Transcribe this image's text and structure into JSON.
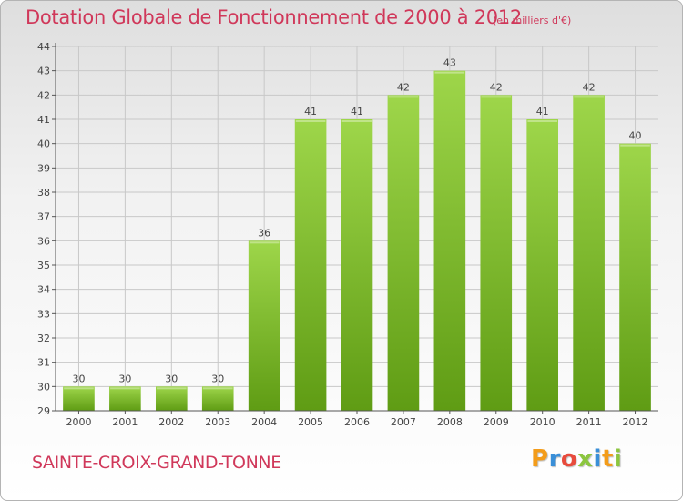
{
  "header": {
    "title": "Dotation Globale de Fonctionnement de 2000 à 2012",
    "subtitle": "(en milliers d'€)"
  },
  "footer": {
    "commune": "SAINTE-CROIX-GRAND-TONNE",
    "logo_text": "Proxiti",
    "logo_letters": [
      "P",
      "r",
      "o",
      "x",
      "i",
      "t",
      "i"
    ],
    "logo_colors": [
      "#f39c1a",
      "#3a8fd8",
      "#e84c3d",
      "#8cc63f",
      "#3a8fd8",
      "#f39c1a",
      "#8cc63f"
    ]
  },
  "colors": {
    "accent": "#d0385a",
    "bar_top": "#9ed64a",
    "bar_bottom": "#5f9c14",
    "grid": "#c8c8c8",
    "axis": "#555555"
  },
  "chart_data": {
    "type": "bar",
    "title": "Dotation Globale de Fonctionnement de 2000 à 2012",
    "subtitle": "(en milliers d'€)",
    "xlabel": "",
    "ylabel": "",
    "categories": [
      "2000",
      "2001",
      "2002",
      "2003",
      "2004",
      "2005",
      "2006",
      "2007",
      "2008",
      "2009",
      "2010",
      "2011",
      "2012"
    ],
    "values": [
      30,
      30,
      30,
      30,
      36,
      41,
      41,
      42,
      43,
      42,
      41,
      42,
      40
    ],
    "ylim": [
      29,
      44
    ],
    "yticks": [
      29,
      30,
      31,
      32,
      33,
      34,
      35,
      36,
      37,
      38,
      39,
      40,
      41,
      42,
      43,
      44
    ],
    "grid": true,
    "data_labels": true
  }
}
